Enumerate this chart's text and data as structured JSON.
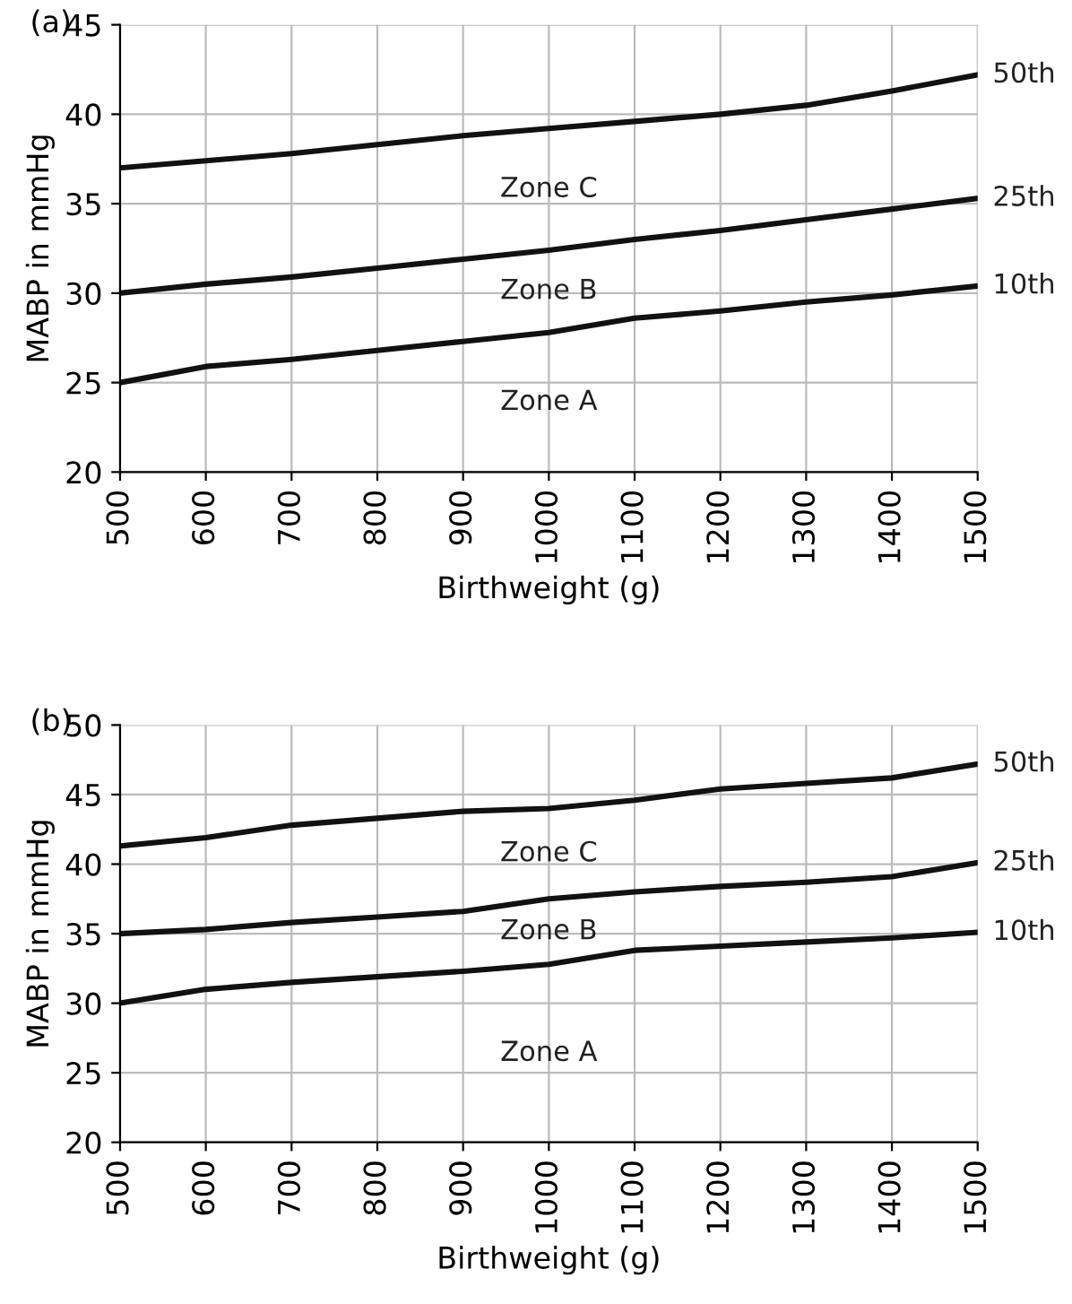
{
  "chart_data": [
    {
      "type": "line",
      "title": "(a)",
      "xlabel": "Birthweight (g)",
      "ylabel": "MABP in mmHg",
      "x": [
        500,
        600,
        700,
        800,
        900,
        1000,
        1100,
        1200,
        1300,
        1400,
        1500
      ],
      "series": [
        {
          "name": "50th",
          "color": "#111111",
          "values": [
            37,
            37.4,
            37.8,
            38.3,
            38.8,
            39.2,
            39.6,
            40.0,
            40.5,
            41.3,
            42.2
          ]
        },
        {
          "name": "25th",
          "color": "#111111",
          "values": [
            30,
            30.5,
            30.9,
            31.4,
            31.9,
            32.4,
            33.0,
            33.5,
            34.1,
            34.7,
            35.3
          ]
        },
        {
          "name": "10th",
          "color": "#111111",
          "values": [
            25,
            25.9,
            26.3,
            26.8,
            27.3,
            27.8,
            28.6,
            29.0,
            29.5,
            29.9,
            30.4
          ]
        }
      ],
      "annotations": [
        "Zone C",
        "Zone B",
        "Zone A"
      ],
      "xlim": [
        500,
        1500
      ],
      "xticks": [
        500,
        600,
        700,
        800,
        900,
        1000,
        1100,
        1200,
        1300,
        1400,
        1500
      ],
      "ylim": [
        20,
        45
      ],
      "yticks": [
        20,
        25,
        30,
        35,
        40,
        45
      ],
      "grid": true,
      "marker": "none",
      "line_style": "solid",
      "legend": false
    },
    {
      "type": "line",
      "title": "(b)",
      "xlabel": "Birthweight (g)",
      "ylabel": "MABP in mmHg",
      "x": [
        500,
        600,
        700,
        800,
        900,
        1000,
        1100,
        1200,
        1300,
        1400,
        1500
      ],
      "series": [
        {
          "name": "50th",
          "color": "#111111",
          "values": [
            41.3,
            41.9,
            42.8,
            43.3,
            43.8,
            44.0,
            44.6,
            45.4,
            45.8,
            46.2,
            47.2
          ]
        },
        {
          "name": "25th",
          "color": "#111111",
          "values": [
            35,
            35.3,
            35.8,
            36.2,
            36.6,
            37.5,
            38,
            38.4,
            38.7,
            39.1,
            40.1
          ]
        },
        {
          "name": "10th",
          "color": "#111111",
          "values": [
            30,
            31,
            31.5,
            31.9,
            32.3,
            32.8,
            33.8,
            34.1,
            34.4,
            34.7,
            35.1
          ]
        }
      ],
      "annotations": [
        "Zone C",
        "Zone B",
        "Zone A"
      ],
      "xlim": [
        500,
        1500
      ],
      "xticks": [
        500,
        600,
        700,
        800,
        900,
        1000,
        1100,
        1200,
        1300,
        1400,
        1500
      ],
      "ylim": [
        20,
        50
      ],
      "yticks": [
        20,
        25,
        30,
        35,
        40,
        45,
        50
      ],
      "grid": true,
      "marker": "none",
      "line_style": "solid",
      "legend": false
    }
  ]
}
